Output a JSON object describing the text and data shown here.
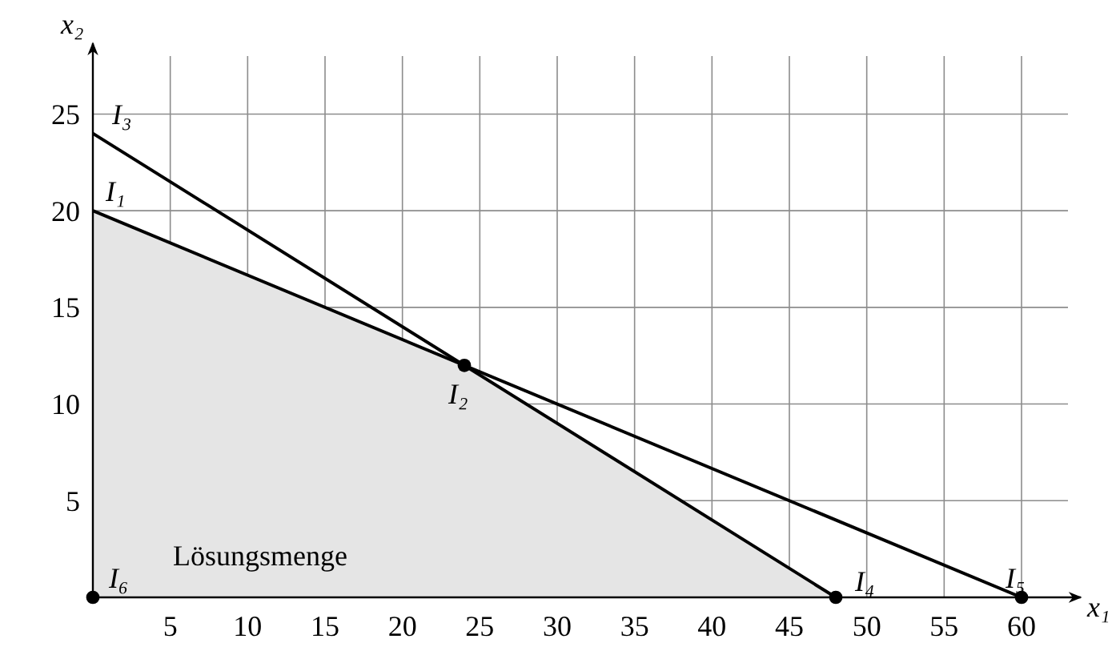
{
  "chart_data": {
    "type": "line",
    "xlabel": "x₁",
    "ylabel": "x₂",
    "xlim": [
      0,
      63
    ],
    "ylim": [
      0,
      28
    ],
    "xticks": [
      5,
      10,
      15,
      20,
      25,
      30,
      35,
      40,
      45,
      50,
      55,
      60
    ],
    "yticks": [
      5,
      10,
      15,
      20,
      25
    ],
    "grid": true,
    "series": [
      {
        "type": "area",
        "color": "#e5e5e5",
        "x": [
          0,
          0,
          24,
          48
        ],
        "values": [
          0,
          20,
          12,
          0
        ]
      },
      {
        "color": "#000000",
        "x": [
          0,
          60
        ],
        "values": [
          20,
          0
        ]
      },
      {
        "color": "#000000",
        "x": [
          0,
          48
        ],
        "values": [
          24,
          0
        ]
      },
      {
        "type": "scatter",
        "color": "#000000",
        "marker": "circle",
        "x": [
          24,
          48,
          60,
          0
        ],
        "values": [
          12,
          0,
          0,
          0
        ]
      }
    ],
    "annotations": [
      {
        "text": "I₁",
        "x": 0,
        "y": 20
      },
      {
        "text": "I₂",
        "x": 24,
        "y": 12
      },
      {
        "text": "I₃",
        "x": 0,
        "y": 24
      },
      {
        "text": "I₄",
        "x": 48,
        "y": 0
      },
      {
        "text": "I₅",
        "x": 60,
        "y": 0
      },
      {
        "text": "I₆",
        "x": 0,
        "y": 0
      },
      "Lösungsmenge"
    ]
  }
}
